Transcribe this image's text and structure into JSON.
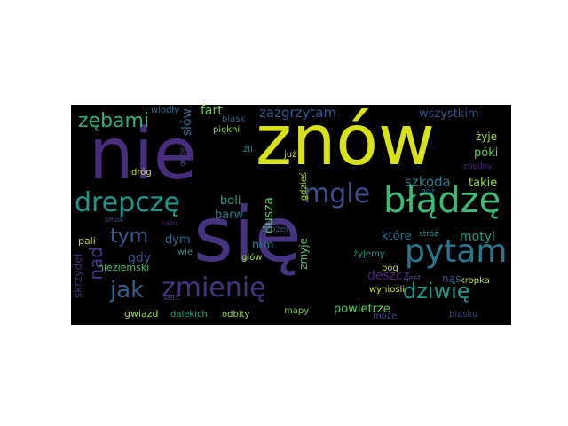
{
  "words": [
    {
      "text": "nie",
      "color": "#472d7b"
    },
    {
      "text": "znów",
      "color": "#d8e219"
    },
    {
      "text": "się",
      "color": "#463480"
    },
    {
      "text": "błądzę",
      "color": "#3bbb75"
    },
    {
      "text": "pytam",
      "color": "#2a788e"
    },
    {
      "text": "mgle",
      "color": "#3e4a89"
    },
    {
      "text": "drepczę",
      "color": "#1f988b"
    },
    {
      "text": "zmienię",
      "color": "#46327e"
    },
    {
      "text": "jak",
      "color": "#33638d"
    },
    {
      "text": "dziwię",
      "color": "#1f9a8a"
    },
    {
      "text": "zębami",
      "color": "#2db27d"
    },
    {
      "text": "tym",
      "color": "#375b8d"
    },
    {
      "text": "nad",
      "color": "#453781"
    },
    {
      "text": "zazgrzytam",
      "color": "#38588c"
    },
    {
      "text": "szkoda",
      "color": "#287d8e"
    },
    {
      "text": "słów",
      "color": "#2d708e"
    },
    {
      "text": "fart",
      "color": "#6ccd5a"
    },
    {
      "text": "wszystkim",
      "color": "#3b518b"
    },
    {
      "text": "gdy",
      "color": "#39558c"
    },
    {
      "text": "dusza",
      "color": "#5cc863"
    },
    {
      "text": "barw",
      "color": "#2a788e"
    },
    {
      "text": "boli",
      "color": "#1f9f88"
    },
    {
      "text": "dym",
      "color": "#2c728e"
    },
    {
      "text": "nim",
      "color": "#24878e"
    },
    {
      "text": "deszcz",
      "color": "#482677"
    },
    {
      "text": "motyl",
      "color": "#1f9e89"
    },
    {
      "text": "które",
      "color": "#2c728e"
    },
    {
      "text": "takie",
      "color": "#9bd93c"
    },
    {
      "text": "póki",
      "color": "#67cc5c"
    },
    {
      "text": "żyje",
      "color": "#9dd93b"
    },
    {
      "text": "skrzydeł",
      "color": "#472d7b"
    },
    {
      "text": "nieziemski",
      "color": "#46c06f"
    },
    {
      "text": "gwiazd",
      "color": "#98d83e"
    },
    {
      "text": "pali",
      "color": "#b5de2b"
    },
    {
      "text": "powietrze",
      "color": "#5ec962"
    },
    {
      "text": "nas",
      "color": "#39568c"
    },
    {
      "text": "kropka",
      "color": "#c2df23"
    },
    {
      "text": "wyniośli",
      "color": "#dde318"
    },
    {
      "text": "zmyje",
      "color": "#56c667"
    },
    {
      "text": "może",
      "color": "#3e4a89"
    },
    {
      "text": "blasku",
      "color": "#3f4788"
    },
    {
      "text": "odbity",
      "color": "#a2da37"
    },
    {
      "text": "mapy",
      "color": "#75d054"
    },
    {
      "text": "dalekich",
      "color": "#21a685"
    },
    {
      "text": "serc",
      "color": "#3b528b"
    },
    {
      "text": "wie",
      "color": "#1f968b"
    },
    {
      "text": "nam",
      "color": "#482475"
    },
    {
      "text": "dróg",
      "color": "#c8e020"
    },
    {
      "text": "gdzie",
      "color": "#404588"
    },
    {
      "text": "źli",
      "color": "#238a8d"
    },
    {
      "text": "już",
      "color": "#c0df25"
    },
    {
      "text": "gdzieś",
      "color": "#addc30"
    },
    {
      "text": "nożem",
      "color": "#3e4a89"
    },
    {
      "text": "głów",
      "color": "#9bd93c"
    },
    {
      "text": "żyjemy",
      "color": "#1f9f88"
    },
    {
      "text": "bóg",
      "color": "#b2dd2d"
    },
    {
      "text": "jest",
      "color": "#3b528b"
    },
    {
      "text": "stróż",
      "color": "#1f968b"
    },
    {
      "text": "nóż",
      "color": "#31688e"
    },
    {
      "text": "zbędny",
      "color": "#482475"
    },
    {
      "text": "wiodły",
      "color": "#2c728e"
    },
    {
      "text": "blask",
      "color": "#32658e"
    },
    {
      "text": "piękni",
      "color": "#a0da39"
    },
    {
      "text": "gdzie",
      "color": "#404588"
    },
    {
      "text": "smok",
      "color": "#3b528b"
    }
  ]
}
